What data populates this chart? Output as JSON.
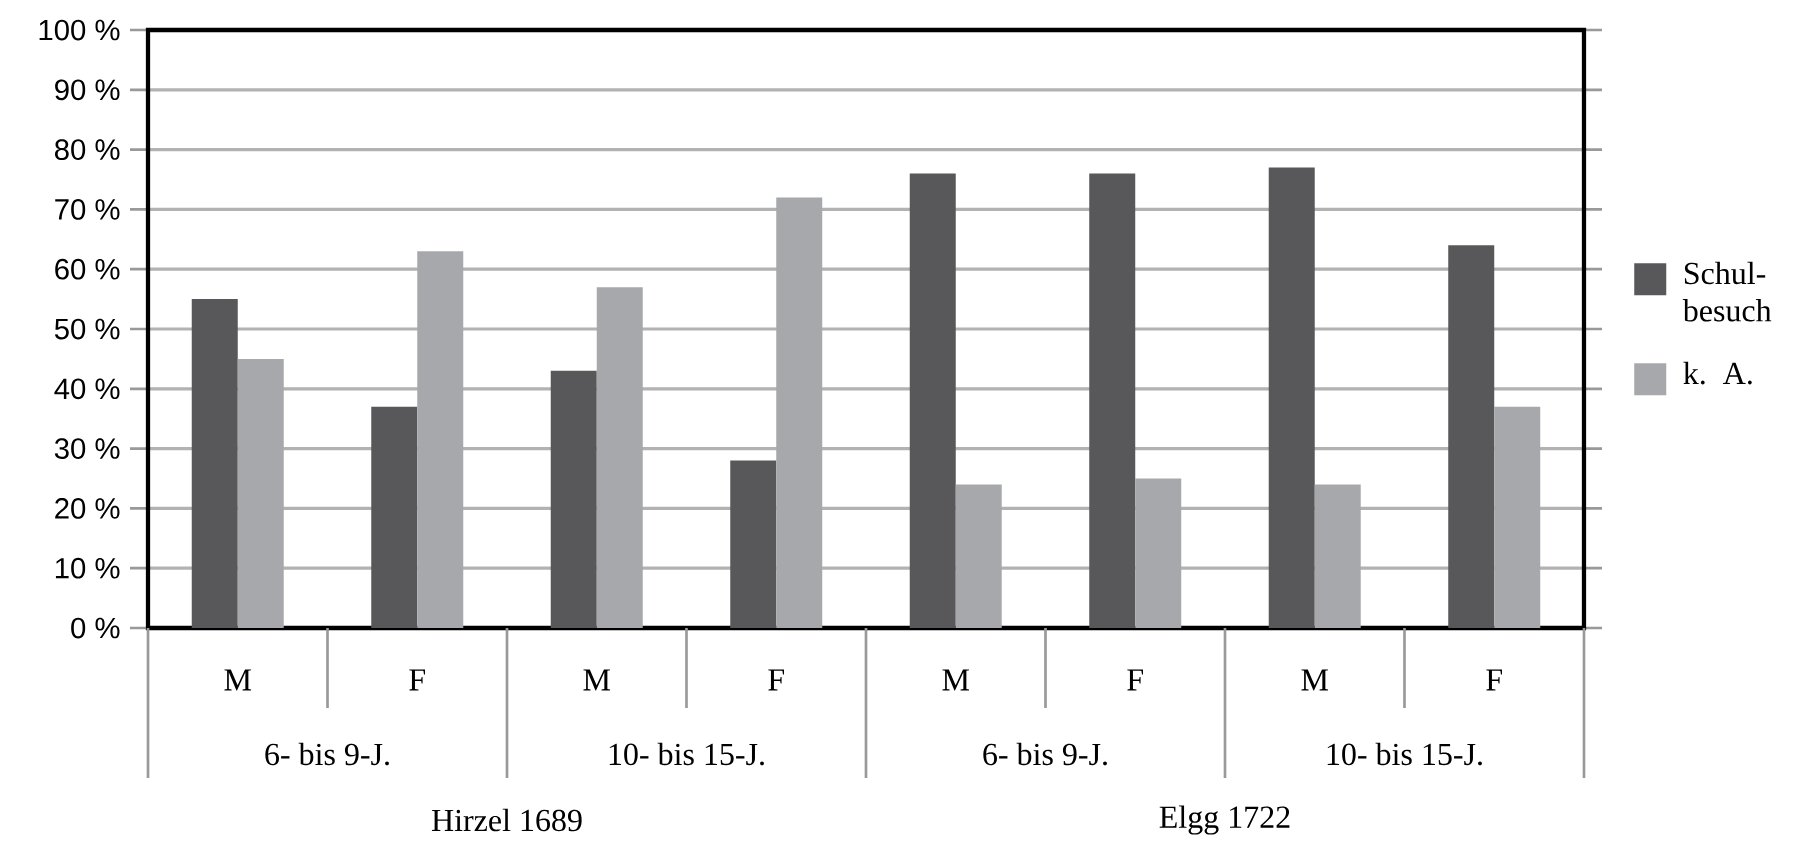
{
  "chart_data": {
    "type": "bar",
    "categories": [
      "M",
      "F",
      "M",
      "F",
      "M",
      "F",
      "M",
      "F"
    ],
    "series": [
      {
        "name": "Schul-besuch",
        "color": "#58585a",
        "values": [
          55,
          37,
          43,
          28,
          76,
          76,
          77,
          64
        ]
      },
      {
        "name": "k. A.",
        "color": "#a7a8ab",
        "values": [
          45,
          63,
          57,
          72,
          24,
          25,
          24,
          37
        ]
      }
    ],
    "ylim": [
      0,
      100
    ],
    "yticks": [
      {
        "value": 0,
        "label": "0 %"
      },
      {
        "value": 10,
        "label": "10 %"
      },
      {
        "value": 20,
        "label": "20 %"
      },
      {
        "value": 30,
        "label": "30 %"
      },
      {
        "value": 40,
        "label": "40 %"
      },
      {
        "value": 50,
        "label": "50 %"
      },
      {
        "value": 60,
        "label": "60 %"
      },
      {
        "value": 70,
        "label": "70 %"
      },
      {
        "value": 80,
        "label": "80 %"
      },
      {
        "value": 90,
        "label": "90 %"
      },
      {
        "value": 100,
        "label": "100 %"
      }
    ],
    "grid": "y",
    "legend": "right",
    "annotations": [
      "6- bis 9-J.",
      "10- bis 15-J.",
      "6- bis 9-J.",
      "10- bis 15-J.",
      "Hirzel 1689",
      "Elgg 1722"
    ]
  }
}
